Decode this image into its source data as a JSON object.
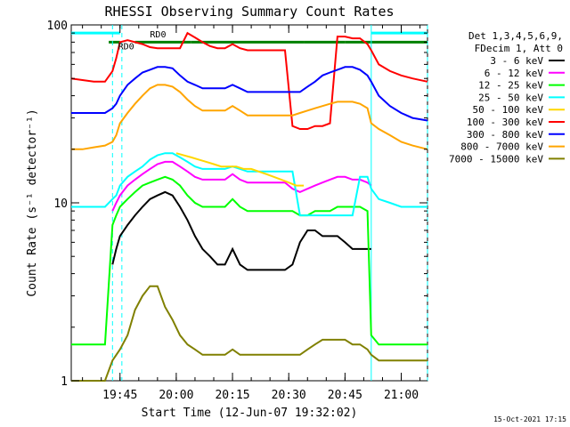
{
  "chart_data": {
    "type": "line",
    "title": "RHESSI Observing Summary Count Rates",
    "xlabel": "Start Time (12-Jun-07 19:32:02)",
    "ylabel": "Count Rate (s⁻¹ detector⁻¹)",
    "footer": "15-Oct-2021 17:15",
    "x_range_min": [
      0,
      95
    ],
    "y_range": [
      1,
      100
    ],
    "y_scale": "log",
    "x_ticks": [
      {
        "label": "19:45",
        "x": 13
      },
      {
        "label": "20:00",
        "x": 28
      },
      {
        "label": "20:15",
        "x": 43
      },
      {
        "label": "20:30",
        "x": 58
      },
      {
        "label": "20:45",
        "x": 73
      },
      {
        "label": "21:00",
        "x": 88
      }
    ],
    "y_ticks": [
      {
        "label": "1",
        "y": 1
      },
      {
        "label": "10",
        "y": 10
      },
      {
        "label": "100",
        "y": 100
      }
    ],
    "legend": {
      "placement": "right",
      "header": [
        "Det 1,3,4,5,6,9,",
        "FDecim 1, Att 0"
      ],
      "entries": [
        {
          "label": "3 - 6 keV",
          "color": "#000000"
        },
        {
          "label": "6 - 12 keV",
          "color": "#ff00ff"
        },
        {
          "label": "12 - 25 keV",
          "color": "#00ff00"
        },
        {
          "label": "25 - 50 keV",
          "color": "#00ffff"
        },
        {
          "label": "50 - 100 keV",
          "color": "#ffd700"
        },
        {
          "label": "100 - 300 keV",
          "color": "#ff0000"
        },
        {
          "label": "300 - 800 keV",
          "color": "#0000ff"
        },
        {
          "label": "800 - 7000 keV",
          "color": "#ffa500"
        },
        {
          "label": "7000 - 15000 keV",
          "color": "#808000"
        }
      ]
    },
    "annotations": [
      {
        "text": "RD0",
        "x": 12.5,
        "y": 73,
        "color": "#008000"
      },
      {
        "text": "RD0",
        "x": 21,
        "y": 85,
        "color": "#008000"
      }
    ],
    "flag_bars": [
      {
        "name": "saa-flag",
        "color": "#00ffff",
        "segments": [
          [
            0,
            13
          ],
          [
            80,
            95
          ]
        ],
        "y": 90
      },
      {
        "name": "rd-flag",
        "color": "#008000",
        "segments": [
          [
            10,
            13
          ],
          [
            17,
            32
          ],
          [
            32,
            62
          ],
          [
            62,
            73
          ],
          [
            73,
            95
          ]
        ],
        "y": 80
      }
    ],
    "vlines": [
      {
        "x": 11,
        "color": "#00ffff",
        "style": "dashed"
      },
      {
        "x": 13.5,
        "color": "#00ffff",
        "style": "dashed"
      },
      {
        "x": 80,
        "color": "#00ffff",
        "style": "solid"
      },
      {
        "x": 95,
        "color": "#00ffff",
        "style": "dashed"
      }
    ],
    "series": [
      {
        "name": "3 - 6 keV",
        "color": "#000000",
        "x": [
          11,
          12,
          13,
          15,
          17,
          19,
          21,
          23,
          25,
          27,
          29,
          31,
          33,
          35,
          37,
          39,
          41,
          43,
          45,
          47,
          49,
          51,
          53,
          55,
          57,
          59,
          61,
          63,
          65,
          67,
          69,
          71,
          73,
          75,
          77,
          79,
          80
        ],
        "y": [
          4.5,
          5.5,
          6.5,
          7.5,
          8.5,
          9.5,
          10.5,
          11,
          11.5,
          11,
          9.5,
          8,
          6.5,
          5.5,
          5,
          4.5,
          4.5,
          5.5,
          4.5,
          4.2,
          4.2,
          4.2,
          4.2,
          4.2,
          4.2,
          4.5,
          6,
          7,
          7,
          6.5,
          6.5,
          6.5,
          6,
          5.5,
          5.5,
          5.5,
          5.5
        ]
      },
      {
        "name": "6 - 12 keV",
        "color": "#ff00ff",
        "x": [
          11,
          12,
          13,
          15,
          17,
          19,
          21,
          23,
          25,
          27,
          29,
          31,
          33,
          35,
          37,
          39,
          41,
          43,
          45,
          47,
          49,
          51,
          53,
          55,
          57,
          59,
          61,
          63,
          65,
          67,
          69,
          71,
          73,
          75,
          77,
          79,
          80
        ],
        "y": [
          9,
          10,
          11,
          12.5,
          13.5,
          14.5,
          15.5,
          16.5,
          17,
          17,
          16,
          15,
          14,
          13.5,
          13.5,
          13.5,
          13.5,
          14.5,
          13.5,
          13,
          13,
          13,
          13,
          13,
          13,
          12,
          11.5,
          12,
          12.5,
          13,
          13.5,
          14,
          14,
          13.5,
          13.5,
          13,
          12.5
        ]
      },
      {
        "name": "12 - 25 keV",
        "color": "#00ff00",
        "x": [
          0,
          3,
          6,
          9,
          11,
          12,
          13,
          15,
          17,
          19,
          21,
          23,
          25,
          27,
          29,
          31,
          33,
          35,
          37,
          39,
          41,
          43,
          45,
          47,
          49,
          51,
          53,
          55,
          57,
          59,
          61,
          63,
          65,
          67,
          69,
          71,
          73,
          75,
          77,
          79,
          80,
          82,
          85,
          88,
          91,
          95
        ],
        "y": [
          1.6,
          1.6,
          1.6,
          1.6,
          7.5,
          8.5,
          9.5,
          10.5,
          11.5,
          12.5,
          13,
          13.5,
          14,
          13.5,
          12.5,
          11,
          10,
          9.5,
          9.5,
          9.5,
          9.5,
          10.5,
          9.5,
          9,
          9,
          9,
          9,
          9,
          9,
          9,
          8.5,
          8.5,
          9,
          9,
          9,
          9.5,
          9.5,
          9.5,
          9.5,
          9,
          1.8,
          1.6,
          1.6,
          1.6,
          1.6,
          1.6
        ]
      },
      {
        "name": "25 - 50 keV",
        "color": "#00ffff",
        "x": [
          0,
          3,
          6,
          9,
          11,
          12,
          13,
          15,
          17,
          19,
          21,
          23,
          25,
          27,
          29,
          31,
          33,
          35,
          37,
          39,
          41,
          43,
          45,
          47,
          49,
          51,
          53,
          55,
          57,
          59,
          61,
          63,
          65,
          67,
          69,
          71,
          73,
          75,
          77,
          79,
          80,
          82,
          85,
          88,
          91,
          95
        ],
        "y": [
          9.5,
          9.5,
          9.5,
          9.5,
          10.5,
          11,
          12.5,
          14,
          15,
          16,
          17.5,
          18.5,
          19,
          19,
          18,
          17,
          16,
          15.5,
          15.5,
          15.5,
          15.5,
          16,
          15.5,
          15,
          15,
          15,
          15,
          15,
          15,
          15,
          8.5,
          8.5,
          8.5,
          8.5,
          8.5,
          8.5,
          8.5,
          8.5,
          14,
          14,
          12,
          10.5,
          10,
          9.5,
          9.5,
          9.5
        ]
      },
      {
        "name": "50 - 100 keV",
        "color": "#ffd700",
        "x": [
          28,
          30,
          32,
          34,
          36,
          38,
          40,
          42,
          44,
          46,
          48,
          50,
          52,
          54,
          56,
          58,
          60,
          62
        ],
        "y": [
          19,
          18.5,
          18,
          17.5,
          17,
          16.5,
          16,
          16,
          16,
          15.5,
          15.5,
          15,
          14.5,
          14,
          13.5,
          13,
          12.5,
          12.5
        ]
      },
      {
        "name": "100 - 300 keV",
        "color": "#ff0000",
        "x": [
          0,
          3,
          6,
          9,
          11,
          12,
          13,
          15,
          17,
          19,
          21,
          23,
          25,
          27,
          29,
          31,
          33,
          35,
          37,
          39,
          41,
          43,
          45,
          47,
          49,
          51,
          53,
          55,
          57,
          59,
          61,
          63,
          65,
          67,
          69,
          71,
          73,
          75,
          77,
          79,
          80,
          82,
          85,
          88,
          91,
          95
        ],
        "y": [
          50,
          49,
          48,
          48,
          55,
          65,
          80,
          82,
          80,
          78,
          75,
          74,
          74,
          74,
          74,
          90,
          85,
          80,
          76,
          74,
          74,
          78,
          74,
          72,
          72,
          72,
          72,
          72,
          72,
          27,
          26,
          26,
          27,
          27,
          28,
          86,
          86,
          84,
          84,
          78,
          72,
          60,
          55,
          52,
          50,
          48
        ]
      },
      {
        "name": "300 - 800 keV",
        "color": "#0000ff",
        "x": [
          0,
          3,
          6,
          9,
          11,
          12,
          13,
          15,
          17,
          19,
          21,
          23,
          25,
          27,
          29,
          31,
          33,
          35,
          37,
          39,
          41,
          43,
          45,
          47,
          49,
          51,
          53,
          55,
          57,
          59,
          61,
          63,
          65,
          67,
          69,
          71,
          73,
          75,
          77,
          79,
          80,
          82,
          85,
          88,
          91,
          95
        ],
        "y": [
          32,
          32,
          32,
          32,
          34,
          36,
          40,
          46,
          50,
          54,
          56,
          58,
          58,
          57,
          52,
          48,
          46,
          44,
          44,
          44,
          44,
          46,
          44,
          42,
          42,
          42,
          42,
          42,
          42,
          42,
          42,
          45,
          48,
          52,
          54,
          56,
          58,
          58,
          56,
          52,
          48,
          40,
          35,
          32,
          30,
          29
        ]
      },
      {
        "name": "800 - 7000 keV",
        "color": "#ffa500",
        "x": [
          0,
          3,
          6,
          9,
          11,
          12,
          13,
          15,
          17,
          19,
          21,
          23,
          25,
          27,
          29,
          31,
          33,
          35,
          37,
          39,
          41,
          43,
          45,
          47,
          49,
          51,
          53,
          55,
          57,
          59,
          61,
          63,
          65,
          67,
          69,
          71,
          73,
          75,
          77,
          79,
          80,
          82,
          85,
          88,
          91,
          95
        ],
        "y": [
          20,
          20,
          20.5,
          21,
          22,
          24,
          28,
          32,
          36,
          40,
          44,
          46,
          46,
          45,
          42,
          38,
          35,
          33,
          33,
          33,
          33,
          35,
          33,
          31,
          31,
          31,
          31,
          31,
          31,
          31,
          32,
          33,
          34,
          35,
          36,
          37,
          37,
          37,
          36,
          34,
          28,
          26,
          24,
          22,
          21,
          20
        ]
      },
      {
        "name": "7000 - 15000 keV",
        "color": "#808000",
        "x": [
          0,
          3,
          6,
          9,
          11,
          13,
          15,
          17,
          19,
          21,
          23,
          25,
          27,
          29,
          31,
          33,
          35,
          37,
          39,
          41,
          43,
          45,
          47,
          49,
          51,
          53,
          55,
          57,
          59,
          61,
          63,
          65,
          67,
          69,
          71,
          73,
          75,
          77,
          79,
          80,
          82,
          85,
          88,
          91,
          95
        ],
        "y": [
          1,
          1,
          1,
          1,
          1.3,
          1.5,
          1.8,
          2.5,
          3,
          3.4,
          3.4,
          2.6,
          2.2,
          1.8,
          1.6,
          1.5,
          1.4,
          1.4,
          1.4,
          1.4,
          1.5,
          1.4,
          1.4,
          1.4,
          1.4,
          1.4,
          1.4,
          1.4,
          1.4,
          1.4,
          1.5,
          1.6,
          1.7,
          1.7,
          1.7,
          1.7,
          1.6,
          1.6,
          1.5,
          1.4,
          1.3,
          1.3,
          1.3,
          1.3,
          1.3
        ]
      }
    ]
  }
}
